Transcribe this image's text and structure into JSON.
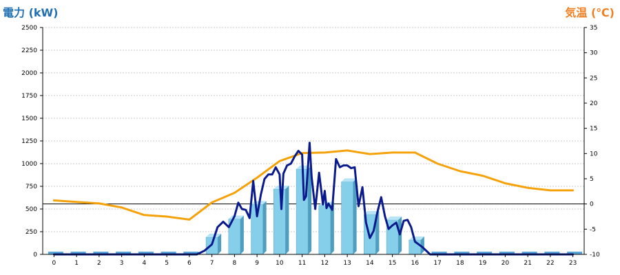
{
  "left_axis_title": "電力 (kW)",
  "right_axis_title": "気温 (℃)",
  "colors": {
    "left_title": "#1f6fb2",
    "right_title": "#f07f22",
    "bar_front": "#86cfea",
    "bar_side": "#4f9ec0",
    "bar_top": "#b8e5f6",
    "bar_flat": "#5aa6d8",
    "power_line": "#0a1a8c",
    "temp_line": "#f5a20a",
    "grid": "#c8c8c8",
    "zero_line": "#000000"
  },
  "chart_data": {
    "type": "bar",
    "title": "",
    "xlabel": "",
    "ylabel": "電力 (kW)",
    "y2label": "気温 (℃)",
    "grid": true,
    "ylim": [
      0,
      2500
    ],
    "y2lim": [
      -10,
      35
    ],
    "yticks": [
      "0",
      "250",
      "500",
      "750",
      "1000",
      "1250",
      "1500",
      "1750",
      "2000",
      "2250",
      "2500"
    ],
    "y2ticks": [
      "-10",
      "-5",
      "0",
      "5",
      "10",
      "15",
      "20",
      "25",
      "30",
      "35"
    ],
    "categories": [
      "0",
      "1",
      "2",
      "3",
      "4",
      "5",
      "6",
      "7",
      "8",
      "9",
      "10",
      "11",
      "12",
      "13",
      "14",
      "15",
      "16",
      "17",
      "18",
      "19",
      "20",
      "21",
      "22",
      "23"
    ],
    "series": [
      {
        "kind": "bar",
        "axis": "left",
        "values": [
          0,
          0,
          0,
          0,
          0,
          0,
          0,
          190,
          390,
          550,
          720,
          940,
          540,
          800,
          440,
          380,
          160,
          0,
          0,
          0,
          0,
          0,
          0,
          0
        ]
      },
      {
        "kind": "line",
        "axis": "left",
        "x": [
          0,
          1,
          2,
          3,
          4,
          5,
          6,
          6.33,
          6.67,
          7,
          7.25,
          7.5,
          7.75,
          8,
          8.17,
          8.33,
          8.5,
          8.67,
          8.83,
          9,
          9.17,
          9.33,
          9.5,
          9.67,
          9.83,
          10,
          10.08,
          10.17,
          10.33,
          10.5,
          10.67,
          10.83,
          11,
          11.08,
          11.17,
          11.33,
          11.42,
          11.58,
          11.75,
          11.92,
          12,
          12.08,
          12.17,
          12.33,
          12.5,
          12.67,
          12.83,
          13,
          13.17,
          13.33,
          13.5,
          13.67,
          13.83,
          14,
          14.17,
          14.33,
          14.5,
          14.67,
          14.83,
          15,
          15.17,
          15.33,
          15.5,
          15.67,
          15.83,
          16,
          16.33,
          16.67,
          17,
          18,
          19,
          20,
          21,
          22,
          23
        ],
        "y": [
          0,
          0,
          0,
          0,
          0,
          0,
          0,
          0,
          40,
          110,
          300,
          360,
          300,
          420,
          570,
          500,
          490,
          400,
          810,
          420,
          660,
          830,
          880,
          880,
          960,
          880,
          500,
          890,
          980,
          1000,
          1080,
          1140,
          1100,
          600,
          640,
          1230,
          850,
          500,
          900,
          550,
          700,
          510,
          560,
          490,
          1050,
          960,
          980,
          980,
          950,
          960,
          530,
          740,
          350,
          180,
          260,
          460,
          630,
          420,
          280,
          320,
          350,
          220,
          370,
          380,
          300,
          140,
          80,
          0,
          0,
          0,
          0,
          0,
          0,
          0,
          0
        ]
      },
      {
        "kind": "line",
        "axis": "right",
        "x": [
          0,
          1,
          2,
          3,
          4,
          5,
          6,
          7,
          8,
          9,
          10,
          11,
          12,
          13,
          14,
          15,
          16,
          17,
          18,
          19,
          20,
          21,
          22,
          23
        ],
        "y": [
          0.7,
          0.4,
          0.1,
          -0.7,
          -2.2,
          -2.5,
          -3.1,
          0.3,
          2.2,
          5.2,
          8.5,
          10.1,
          10.2,
          10.6,
          9.9,
          10.2,
          10.2,
          8.0,
          6.5,
          5.6,
          4.1,
          3.2,
          2.7,
          2.7
        ]
      }
    ]
  }
}
